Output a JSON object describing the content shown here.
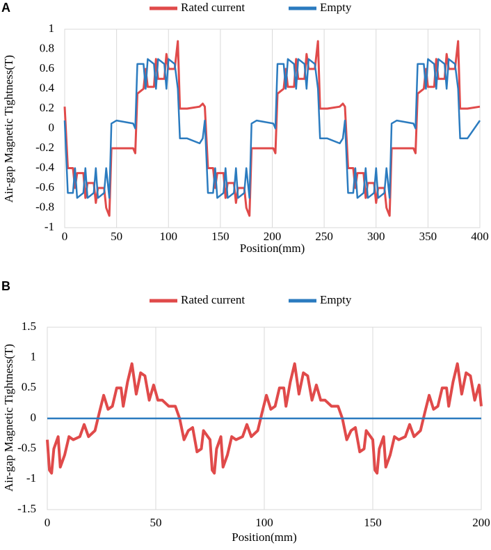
{
  "chart_data": [
    {
      "type": "line",
      "panel": "A",
      "xlabel": "Position(mm)",
      "ylabel": "Air-gap Magnetic Tightness(T)",
      "xlim": [
        0,
        400
      ],
      "xticks": [
        0,
        50,
        100,
        150,
        200,
        250,
        300,
        350,
        400
      ],
      "ylim": [
        -1,
        1
      ],
      "yticks": [
        1,
        0.8,
        0.6,
        0.4,
        0.2,
        0,
        -0.2,
        -0.4,
        -0.6,
        -0.8,
        -1
      ],
      "grid": true,
      "legend": "top",
      "x": [
        0,
        3,
        8,
        10,
        12,
        18,
        20,
        22,
        28,
        30,
        32,
        38,
        40,
        43,
        45,
        50,
        66,
        68,
        70,
        76,
        78,
        80,
        86,
        88,
        90,
        96,
        98,
        100,
        106,
        109,
        111,
        118,
        130,
        133,
        135,
        138,
        143,
        145,
        147,
        153,
        155,
        157,
        163,
        165,
        167,
        173,
        175,
        178,
        180,
        185,
        201,
        203,
        205,
        211,
        213,
        215,
        221,
        223,
        225,
        231,
        233,
        235,
        241,
        244,
        246,
        253,
        265,
        268,
        270,
        273,
        278,
        280,
        282,
        288,
        290,
        292,
        298,
        300,
        302,
        308,
        310,
        313,
        315,
        320,
        336,
        338,
        340,
        346,
        348,
        350,
        356,
        358,
        360,
        366,
        368,
        370,
        376,
        379,
        381,
        388,
        400
      ],
      "series": [
        {
          "name": "Rated current",
          "color": "#e04a4a",
          "values": [
            0.22,
            -0.4,
            -0.4,
            -0.6,
            -0.45,
            -0.45,
            -0.7,
            -0.55,
            -0.55,
            -0.75,
            -0.6,
            -0.6,
            -0.8,
            -0.88,
            -0.2,
            -0.2,
            -0.2,
            -0.25,
            0.35,
            0.4,
            0.6,
            0.42,
            0.42,
            0.7,
            0.5,
            0.5,
            0.75,
            0.6,
            0.6,
            0.88,
            0.2,
            0.2,
            0.22,
            0.25,
            0.22,
            -0.4,
            -0.4,
            -0.6,
            -0.45,
            -0.45,
            -0.7,
            -0.55,
            -0.55,
            -0.75,
            -0.6,
            -0.6,
            -0.8,
            -0.88,
            -0.2,
            -0.2,
            -0.2,
            -0.25,
            0.35,
            0.4,
            0.6,
            0.42,
            0.42,
            0.7,
            0.5,
            0.5,
            0.75,
            0.6,
            0.6,
            0.88,
            0.2,
            0.2,
            0.22,
            0.25,
            0.22,
            -0.4,
            -0.4,
            -0.6,
            -0.45,
            -0.45,
            -0.7,
            -0.55,
            -0.55,
            -0.75,
            -0.6,
            -0.6,
            -0.8,
            -0.88,
            -0.2,
            -0.2,
            -0.2,
            -0.25,
            0.35,
            0.4,
            0.6,
            0.42,
            0.42,
            0.7,
            0.5,
            0.5,
            0.75,
            0.6,
            0.6,
            0.88,
            0.2,
            0.2,
            0.22
          ]
        },
        {
          "name": "Empty",
          "color": "#2b7bbf",
          "values": [
            0.08,
            -0.65,
            -0.65,
            -0.4,
            -0.7,
            -0.65,
            -0.4,
            -0.7,
            -0.65,
            -0.4,
            -0.7,
            -0.65,
            -0.4,
            -0.7,
            0.05,
            0.08,
            0.05,
            0,
            0.65,
            0.65,
            0.4,
            0.7,
            0.65,
            0.4,
            0.7,
            0.65,
            0.4,
            0.7,
            0.65,
            0.4,
            -0.1,
            -0.1,
            -0.15,
            -0.1,
            0.08,
            -0.65,
            -0.65,
            -0.4,
            -0.7,
            -0.65,
            -0.4,
            -0.7,
            -0.65,
            -0.4,
            -0.7,
            -0.65,
            -0.4,
            -0.7,
            0.05,
            0.08,
            0.05,
            0,
            0.65,
            0.65,
            0.4,
            0.7,
            0.65,
            0.4,
            0.7,
            0.65,
            0.4,
            0.7,
            0.65,
            0.4,
            -0.1,
            -0.1,
            -0.15,
            -0.1,
            0.08,
            -0.65,
            -0.65,
            -0.4,
            -0.7,
            -0.65,
            -0.4,
            -0.7,
            -0.65,
            -0.4,
            -0.7,
            -0.65,
            -0.4,
            -0.7,
            0.05,
            0.08,
            0.05,
            0,
            0.65,
            0.65,
            0.4,
            0.7,
            0.65,
            0.4,
            0.7,
            0.65,
            0.4,
            0.7,
            0.65,
            0.4,
            -0.1,
            -0.1,
            0.08
          ]
        }
      ]
    },
    {
      "type": "line",
      "panel": "B",
      "xlabel": "Position(mm)",
      "ylabel": "Air-gap Magnetic Tightness(T)",
      "xlim": [
        0,
        200
      ],
      "xticks": [
        0,
        50,
        100,
        150,
        200
      ],
      "ylim": [
        -1.5,
        1.5
      ],
      "yticks": [
        1.5,
        1,
        0.5,
        0,
        -0.5,
        -1,
        -1.5
      ],
      "grid": true,
      "legend": "top",
      "series": [
        {
          "name": "Rated current",
          "color": "#e04a4a",
          "x": [
            0,
            1,
            2,
            3,
            5,
            6,
            8,
            10,
            12,
            15,
            17,
            19,
            22,
            24,
            26,
            28,
            30,
            32,
            34,
            35,
            37,
            39,
            41,
            43,
            45,
            47,
            49,
            51,
            53,
            56,
            59,
            61,
            63,
            65,
            67,
            69,
            71,
            72,
            75,
            76,
            77,
            78,
            80,
            81,
            83,
            85,
            87,
            90,
            92,
            94,
            97,
            99,
            101,
            103,
            105,
            107,
            109,
            110,
            112,
            114,
            116,
            118,
            120,
            122,
            124,
            126,
            128,
            131,
            134,
            136,
            138,
            140,
            142,
            144,
            146,
            147,
            150,
            151,
            152,
            153,
            155,
            156,
            158,
            160,
            162,
            165,
            167,
            169,
            172,
            174,
            176,
            178,
            180,
            182,
            184,
            185,
            187,
            189,
            191,
            193,
            195,
            197,
            199,
            200
          ],
          "values": [
            -0.35,
            -0.85,
            -0.9,
            -0.5,
            -0.3,
            -0.8,
            -0.6,
            -0.3,
            -0.35,
            -0.3,
            -0.1,
            -0.3,
            -0.2,
            0.1,
            0.38,
            0.15,
            0.2,
            0.5,
            0.5,
            0.2,
            0.6,
            0.9,
            0.4,
            0.75,
            0.7,
            0.3,
            0.55,
            0.3,
            0.3,
            0.2,
            0.2,
            0,
            -0.35,
            -0.2,
            -0.15,
            -0.55,
            -0.5,
            -0.2,
            -0.35,
            -0.85,
            -0.9,
            -0.5,
            -0.3,
            -0.8,
            -0.6,
            -0.3,
            -0.35,
            -0.3,
            -0.1,
            -0.3,
            -0.2,
            0.1,
            0.38,
            0.15,
            0.2,
            0.5,
            0.5,
            0.2,
            0.6,
            0.9,
            0.4,
            0.75,
            0.7,
            0.3,
            0.55,
            0.3,
            0.3,
            0.2,
            0.2,
            0,
            -0.35,
            -0.2,
            -0.15,
            -0.55,
            -0.5,
            -0.2,
            -0.35,
            -0.85,
            -0.9,
            -0.5,
            -0.3,
            -0.8,
            -0.6,
            -0.3,
            -0.35,
            -0.3,
            -0.1,
            -0.3,
            -0.2,
            0.1,
            0.38,
            0.15,
            0.2,
            0.5,
            0.5,
            0.2,
            0.6,
            0.9,
            0.4,
            0.75,
            0.7,
            0.3,
            0.55,
            0.2
          ]
        },
        {
          "name": "Empty",
          "color": "#2b7bbf",
          "x": [
            0,
            200
          ],
          "values": [
            0,
            0
          ]
        }
      ]
    }
  ]
}
